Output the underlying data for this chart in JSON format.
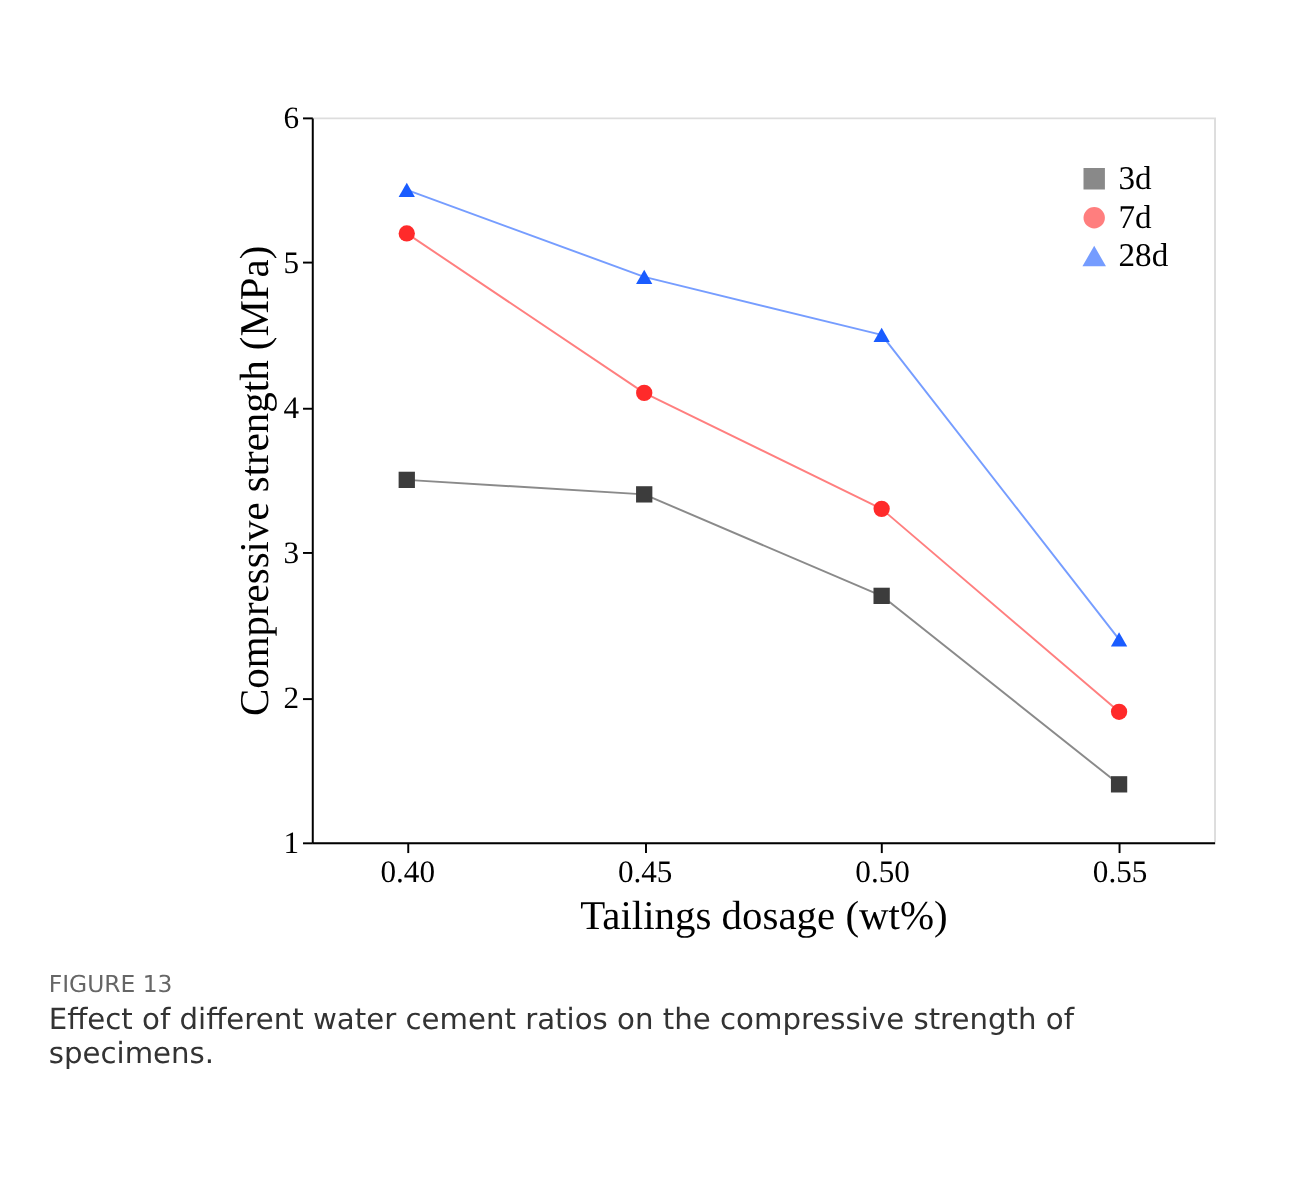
{
  "chart_data": {
    "type": "line",
    "xlabel": "Tailings dosage (wt%)",
    "ylabel": "Compressive strength (MPa)",
    "x": [
      0.4,
      0.45,
      0.5,
      0.55
    ],
    "series": [
      {
        "name": "3d",
        "color": "#3c3c3c",
        "marker": "square",
        "values": [
          3.5,
          3.4,
          2.7,
          1.4
        ]
      },
      {
        "name": "7d",
        "color": "#ff2a2a",
        "marker": "circle",
        "values": [
          5.2,
          4.1,
          3.3,
          1.9
        ]
      },
      {
        "name": "28d",
        "color": "#1a5cff",
        "marker": "triangle",
        "values": [
          5.5,
          4.9,
          4.5,
          2.4
        ]
      }
    ],
    "xlim": [
      0.38,
      0.57
    ],
    "xticks": [
      {
        "value": 0.4,
        "label": "0.40"
      },
      {
        "value": 0.45,
        "label": "0.45"
      },
      {
        "value": 0.5,
        "label": "0.50"
      },
      {
        "value": 0.55,
        "label": "0.55"
      }
    ],
    "ylim": [
      1,
      6
    ],
    "yticks": [
      1,
      2,
      3,
      4,
      5,
      6
    ],
    "grid": false,
    "legend": "top right",
    "line_style": "solid",
    "annotations": [
      "FIGURE 13",
      "Effect of different water cement ratios on the compressive strength of specimens."
    ]
  }
}
